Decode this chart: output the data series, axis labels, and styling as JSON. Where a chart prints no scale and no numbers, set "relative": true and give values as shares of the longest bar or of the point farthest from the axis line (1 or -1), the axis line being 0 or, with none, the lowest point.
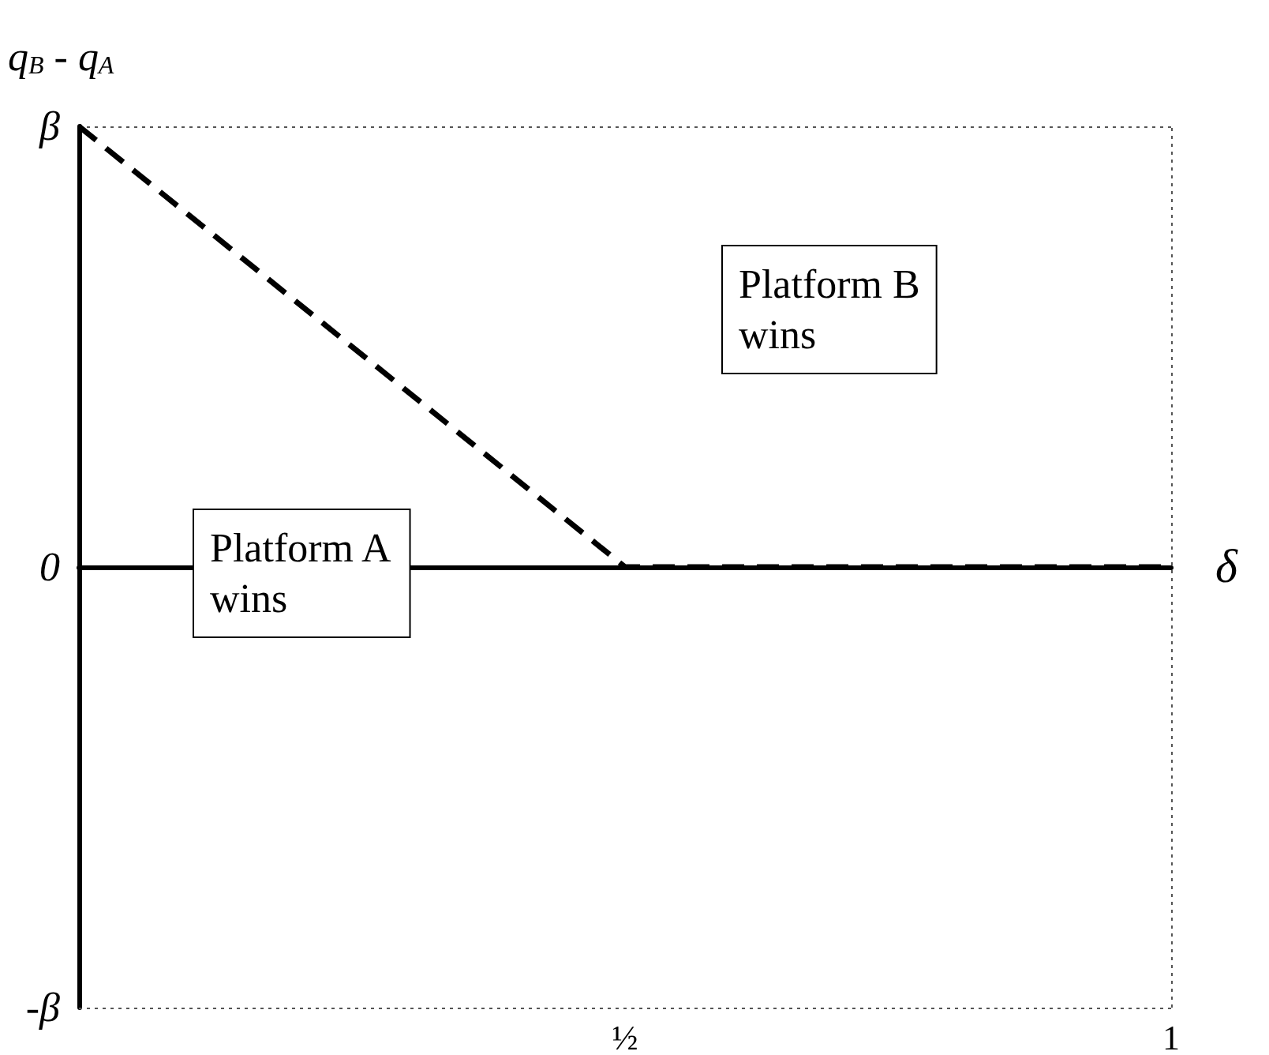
{
  "chart_data": {
    "type": "line",
    "xlabel": "δ",
    "ylabel": "q$_{B}$ - q$_{A}$",
    "categories": [
      null,
      "½",
      "1"
    ],
    "series": [
      {
        "color": "#000000",
        "values": [
          1,
          0,
          0
        ]
      }
    ],
    "relative": true,
    "ref_lines": [
      {
        "axis": "y",
        "value": 1,
        "label": "β",
        "line_style": "dotted",
        "color": "#555555"
      },
      {
        "axis": "y",
        "value": 0,
        "label": "0",
        "line_style": "solid",
        "color": "#000000"
      },
      {
        "axis": "y",
        "value": -1,
        "label": "-β",
        "line_style": "dotted",
        "color": "#555555"
      },
      {
        "axis": "x",
        "value": "1",
        "line_style": "dotted",
        "color": "#555555"
      }
    ],
    "annotations": [
      "Platform A wins",
      "Platform B wins"
    ],
    "grid": false,
    "marker": "none",
    "line_style": "dashed"
  }
}
